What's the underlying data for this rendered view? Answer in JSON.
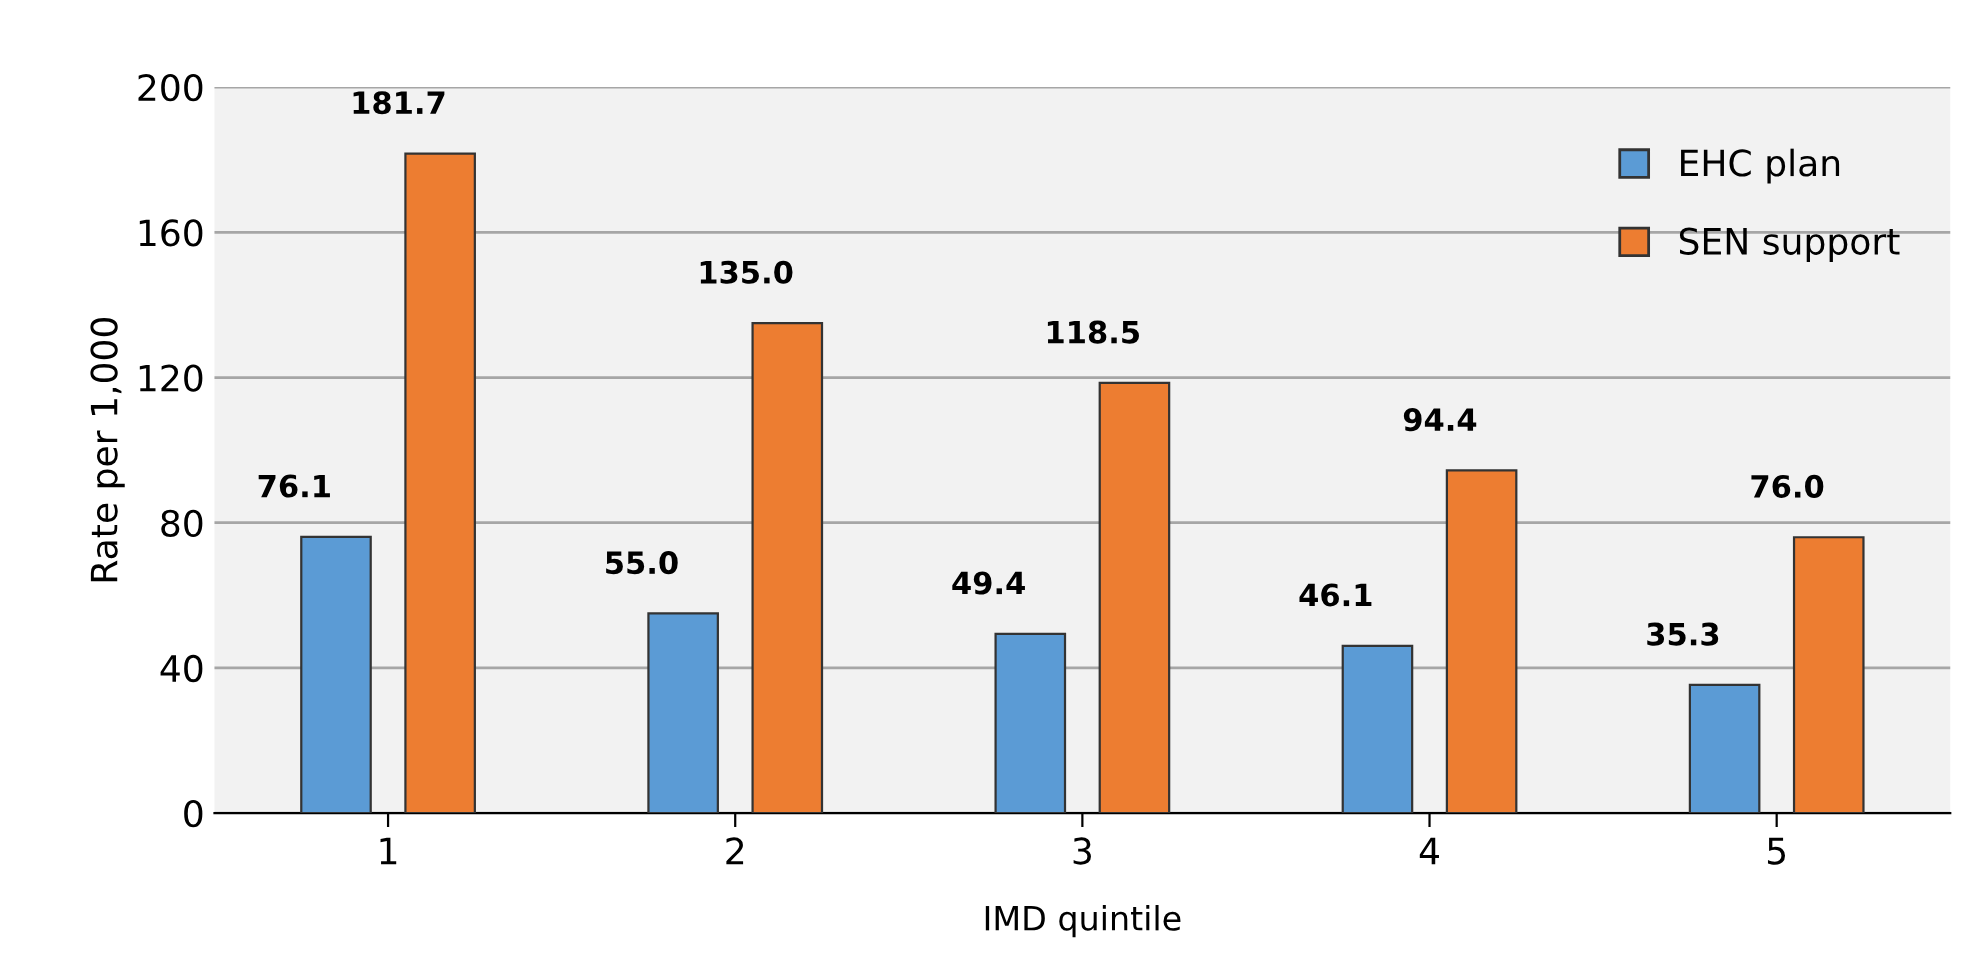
{
  "chart_data": {
    "type": "bar",
    "xlabel": "IMD quintile",
    "ylabel": "Rate per 1,000",
    "categories": [
      "1",
      "2",
      "3",
      "4",
      "5"
    ],
    "series": [
      {
        "name": "EHC plan",
        "color": "#5b9bd5",
        "values": [
          76.1,
          55.0,
          49.4,
          46.1,
          35.3
        ],
        "value_labels": [
          "76.1",
          "55.0",
          "49.4",
          "46.1",
          "35.3"
        ]
      },
      {
        "name": "SEN support",
        "color": "#ed7d31",
        "values": [
          181.7,
          135.0,
          118.5,
          94.4,
          76.0
        ],
        "value_labels": [
          "181.7",
          "135.0",
          "118.5",
          "94.4",
          "76.0"
        ]
      }
    ],
    "ylim": [
      0,
      200
    ],
    "yticks": [
      0,
      40,
      80,
      120,
      160,
      200
    ],
    "grid": "y",
    "legend": "top right"
  }
}
